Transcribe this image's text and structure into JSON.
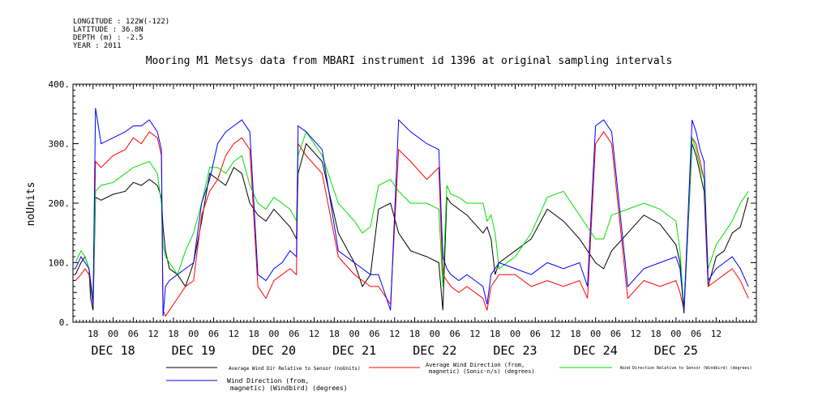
{
  "meta": {
    "longitude": "LONGITUDE : 122W(-122)",
    "latitude": "LATITUDE : 36.8N",
    "depth": "DEPTH (m) : -2.5",
    "year": "YEAR : 2011"
  },
  "chart_data": {
    "type": "line",
    "title": "Mooring M1 Metsys data from MBARI instrument id 1396 at original sampling intervals",
    "ylabel": "noUnits",
    "xlabel": "",
    "ylim": [
      0,
      400
    ],
    "yticks": [
      "0.",
      "100.",
      "200.",
      "300.",
      "400."
    ],
    "xlim": [
      -0.5,
      8.0
    ],
    "x_units": "days since DEC 18 00:00 (hour ticks every 6 h)",
    "hour_ticks": [
      "18",
      "00",
      "06",
      "12",
      "18",
      "00",
      "06",
      "12",
      "18",
      "00",
      "06",
      "12",
      "18",
      "00",
      "06",
      "12",
      "18",
      "00",
      "06",
      "12",
      "18",
      "00",
      "06",
      "12",
      "18",
      "00",
      "06",
      "12",
      "18",
      "00",
      "06",
      "12"
    ],
    "day_labels": [
      "DEC 18",
      "DEC 19",
      "DEC 20",
      "DEC 21",
      "DEC 22",
      "DEC 23",
      "DEC 24",
      "DEC 25"
    ],
    "grid": false,
    "legend_position": "bottom",
    "series": [
      {
        "name": "Average Wind Dir Relative to Sensor (noUnits)",
        "color": "#000000",
        "x": [
          -0.47,
          -0.4,
          -0.35,
          -0.3,
          -0.28,
          -0.25,
          -0.22,
          -0.15,
          0,
          0.15,
          0.25,
          0.35,
          0.45,
          0.55,
          0.6,
          0.62,
          0.65,
          0.7,
          0.8,
          0.9,
          1,
          1.1,
          1.2,
          1.3,
          1.4,
          1.5,
          1.6,
          1.7,
          1.8,
          1.9,
          2,
          2.1,
          2.2,
          2.28,
          2.3,
          2.4,
          2.6,
          2.8,
          3,
          3.1,
          3.2,
          3.3,
          3.45,
          3.55,
          3.7,
          3.9,
          4.05,
          4.1,
          4.15,
          4.2,
          4.3,
          4.4,
          4.6,
          4.65,
          4.7,
          4.75,
          4.8,
          5.0,
          5.2,
          5.4,
          5.6,
          5.8,
          5.9,
          6.0,
          6.1,
          6.2,
          6.4,
          6.6,
          6.8,
          7.0,
          7.05,
          7.1,
          7.2,
          7.25,
          7.3,
          7.35,
          7.4,
          7.5,
          7.6,
          7.7,
          7.8,
          7.9
        ],
        "values": [
          80,
          100,
          110,
          90,
          40,
          20,
          210,
          205,
          215,
          220,
          235,
          230,
          240,
          230,
          210,
          160,
          120,
          90,
          80,
          60,
          100,
          170,
          250,
          240,
          230,
          260,
          250,
          200,
          180,
          170,
          190,
          175,
          160,
          140,
          250,
          300,
          270,
          150,
          100,
          60,
          80,
          190,
          200,
          150,
          120,
          110,
          100,
          20,
          210,
          200,
          190,
          180,
          150,
          160,
          140,
          80,
          100,
          120,
          140,
          190,
          170,
          140,
          120,
          100,
          90,
          120,
          150,
          180,
          165,
          130,
          100,
          15,
          300,
          280,
          250,
          220,
          60,
          110,
          120,
          150,
          160,
          210
        ]
      },
      {
        "name": "Average Wind Direction (from, magnetic) (Sonic-n/s) (degrees)",
        "color": "#ff0000",
        "x": [
          -0.47,
          -0.4,
          -0.35,
          -0.3,
          -0.25,
          -0.22,
          -0.15,
          0,
          0.15,
          0.25,
          0.35,
          0.45,
          0.55,
          0.6,
          0.62,
          0.65,
          0.7,
          0.8,
          0.9,
          1,
          1.1,
          1.2,
          1.3,
          1.4,
          1.5,
          1.6,
          1.7,
          1.8,
          1.9,
          2,
          2.1,
          2.2,
          2.28,
          2.3,
          2.4,
          2.6,
          2.8,
          3,
          3.1,
          3.2,
          3.3,
          3.45,
          3.55,
          3.7,
          3.9,
          4.05,
          4.1,
          4.15,
          4.2,
          4.3,
          4.4,
          4.6,
          4.65,
          4.7,
          4.75,
          4.8,
          5.0,
          5.2,
          5.4,
          5.6,
          5.8,
          5.9,
          6.0,
          6.1,
          6.2,
          6.4,
          6.6,
          6.8,
          7.0,
          7.05,
          7.1,
          7.2,
          7.25,
          7.3,
          7.35,
          7.4,
          7.5,
          7.6,
          7.7,
          7.8,
          7.9
        ],
        "values": [
          70,
          80,
          90,
          80,
          30,
          270,
          260,
          280,
          290,
          310,
          300,
          320,
          310,
          280,
          20,
          10,
          20,
          40,
          60,
          70,
          180,
          220,
          240,
          280,
          300,
          310,
          290,
          60,
          40,
          70,
          80,
          90,
          80,
          300,
          280,
          250,
          110,
          80,
          70,
          60,
          60,
          30,
          290,
          270,
          240,
          260,
          80,
          70,
          60,
          50,
          60,
          40,
          20,
          60,
          70,
          80,
          80,
          60,
          70,
          60,
          70,
          40,
          300,
          320,
          300,
          40,
          70,
          60,
          70,
          50,
          20,
          310,
          300,
          270,
          240,
          60,
          70,
          80,
          90,
          70,
          40
        ]
      },
      {
        "name": "Wind Direction Relative to Sensor (Windbird) (degrees)",
        "color": "#00e000",
        "x": [
          -0.47,
          -0.4,
          -0.35,
          -0.3,
          -0.25,
          -0.22,
          -0.15,
          0,
          0.15,
          0.25,
          0.35,
          0.45,
          0.55,
          0.6,
          0.62,
          0.65,
          0.7,
          0.8,
          0.9,
          1,
          1.1,
          1.2,
          1.3,
          1.4,
          1.5,
          1.6,
          1.7,
          1.8,
          1.9,
          2,
          2.1,
          2.2,
          2.28,
          2.3,
          2.4,
          2.6,
          2.8,
          3,
          3.1,
          3.2,
          3.3,
          3.45,
          3.55,
          3.7,
          3.9,
          4.05,
          4.1,
          4.15,
          4.2,
          4.3,
          4.4,
          4.6,
          4.65,
          4.7,
          4.75,
          4.8,
          5.0,
          5.2,
          5.4,
          5.6,
          5.8,
          5.9,
          6.0,
          6.1,
          6.2,
          6.4,
          6.6,
          6.8,
          7.0,
          7.05,
          7.1,
          7.2,
          7.25,
          7.3,
          7.35,
          7.4,
          7.5,
          7.6,
          7.7,
          7.8,
          7.9
        ],
        "values": [
          100,
          120,
          110,
          90,
          40,
          220,
          230,
          235,
          250,
          260,
          265,
          270,
          250,
          200,
          130,
          110,
          100,
          80,
          120,
          150,
          200,
          260,
          260,
          250,
          270,
          280,
          230,
          200,
          190,
          210,
          200,
          190,
          170,
          280,
          320,
          280,
          200,
          170,
          150,
          160,
          230,
          240,
          220,
          200,
          200,
          190,
          60,
          230,
          215,
          210,
          200,
          200,
          170,
          180,
          150,
          90,
          110,
          150,
          210,
          220,
          180,
          160,
          140,
          140,
          180,
          190,
          200,
          190,
          170,
          120,
          20,
          310,
          290,
          260,
          240,
          90,
          130,
          150,
          170,
          200,
          220
        ]
      },
      {
        "name": "Wind Direction (from, magnetic) (Windbird) (degrees)",
        "color": "#0000ff",
        "x": [
          -0.47,
          -0.4,
          -0.35,
          -0.3,
          -0.25,
          -0.22,
          -0.15,
          0,
          0.15,
          0.25,
          0.35,
          0.45,
          0.55,
          0.6,
          0.62,
          0.65,
          0.7,
          0.8,
          0.9,
          1,
          1.1,
          1.2,
          1.3,
          1.4,
          1.5,
          1.6,
          1.7,
          1.8,
          1.9,
          2,
          2.1,
          2.2,
          2.28,
          2.3,
          2.4,
          2.6,
          2.8,
          3,
          3.1,
          3.2,
          3.3,
          3.45,
          3.55,
          3.7,
          3.9,
          4.05,
          4.1,
          4.15,
          4.2,
          4.3,
          4.4,
          4.6,
          4.65,
          4.7,
          4.75,
          4.8,
          5.0,
          5.2,
          5.4,
          5.6,
          5.8,
          5.9,
          6.0,
          6.1,
          6.2,
          6.4,
          6.6,
          6.8,
          7.0,
          7.05,
          7.1,
          7.2,
          7.25,
          7.3,
          7.35,
          7.4,
          7.5,
          7.6,
          7.7,
          7.8,
          7.9
        ],
        "values": [
          90,
          110,
          100,
          90,
          30,
          360,
          300,
          310,
          320,
          330,
          330,
          340,
          320,
          290,
          10,
          60,
          70,
          80,
          90,
          100,
          200,
          240,
          300,
          320,
          330,
          340,
          320,
          80,
          70,
          90,
          100,
          120,
          110,
          330,
          320,
          290,
          120,
          100,
          90,
          80,
          80,
          20,
          340,
          320,
          300,
          290,
          110,
          90,
          80,
          70,
          80,
          60,
          30,
          80,
          90,
          100,
          90,
          80,
          100,
          90,
          100,
          60,
          330,
          340,
          320,
          60,
          90,
          100,
          110,
          90,
          20,
          340,
          320,
          290,
          270,
          70,
          90,
          100,
          110,
          90,
          60
        ]
      }
    ]
  },
  "legend_labels": {
    "s1": "Average Wind Dir Relative to Sensor (noUnits)",
    "s2a": "Average Wind Direction (from,",
    "s2b": "magnetic) (Sonic-n/s) (degrees)",
    "s3": "Wind Direction Relative to Sensor (Windbird) (degrees)",
    "s4a": "Wind Direction (from,",
    "s4b": "magnetic) (Windbird) (degrees)"
  }
}
